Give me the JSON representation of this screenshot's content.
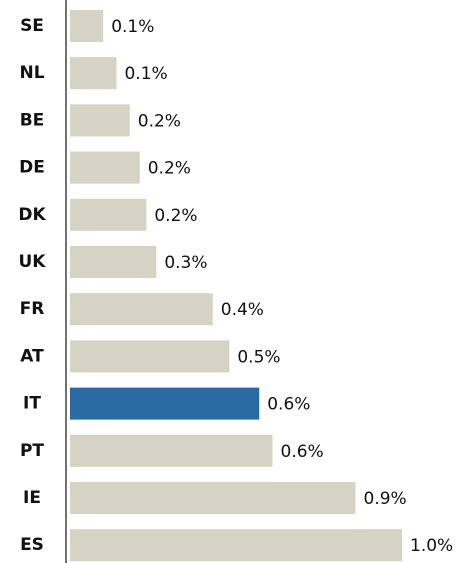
{
  "chart_data": {
    "type": "barh",
    "categories": [
      "SE",
      "NL",
      "BE",
      "DE",
      "DK",
      "UK",
      "FR",
      "AT",
      "IT",
      "PT",
      "IE",
      "ES"
    ],
    "values": [
      0.1,
      0.14,
      0.18,
      0.21,
      0.23,
      0.26,
      0.43,
      0.48,
      0.57,
      0.61,
      0.86,
      1.0
    ],
    "value_labels": [
      "0.1%",
      "0.1%",
      "0.2%",
      "0.2%",
      "0.2%",
      "0.3%",
      "0.4%",
      "0.5%",
      "0.6%",
      "0.6%",
      "0.9%",
      "1.0%"
    ],
    "colors": [
      "#d6d2c4",
      "#d6d2c4",
      "#d6d2c4",
      "#d6d2c4",
      "#d6d2c4",
      "#d6d2c4",
      "#d6d2c4",
      "#d6d2c4",
      "#2a6aa3",
      "#d6d2c4",
      "#d6d2c4",
      "#d6d2c4"
    ]
  }
}
